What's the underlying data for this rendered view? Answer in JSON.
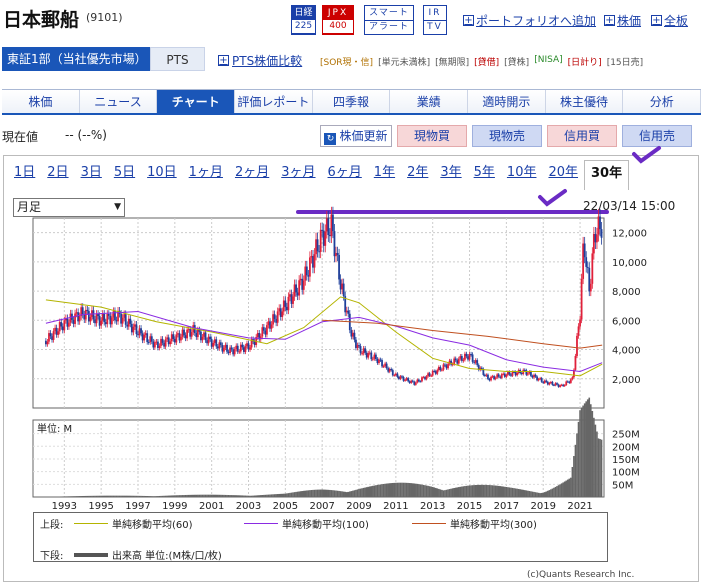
{
  "header": {
    "title": "日本郵船",
    "code": "(9101)",
    "badges": {
      "nikkei": "日経",
      "nikkei_num": "225",
      "jpx": "JPX",
      "jpx_num": "400",
      "smart": "スマート",
      "smart2": "アラート",
      "ir": "IR",
      "tv": "TV"
    },
    "links": {
      "portfolio": "ポートフォリオへ追加",
      "kabuka": "株価",
      "zenban": "全板"
    }
  },
  "market": {
    "primary": "東証1部（当社優先市場）",
    "pts": "PTS",
    "compare": "PTS株価比較",
    "tags": [
      "[SOR現・信]",
      "[単元未満株]",
      "[無期限]",
      "[貸借]",
      "[貸株]",
      "[NISA]",
      "[日計り]",
      "[15日売]"
    ]
  },
  "tabs": [
    "株価",
    "ニュース",
    "チャート",
    "評価レポート",
    "四季報",
    "業績",
    "適時開示",
    "株主優待",
    "分析"
  ],
  "price": {
    "label": "現在値",
    "value": "-- (--%)"
  },
  "buttons": {
    "update": "株価更新",
    "genbutsu_buy": "現物買",
    "genbutsu_sell": "現物売",
    "shinyo_buy": "信用買",
    "shinyo_sell": "信用売"
  },
  "periods": [
    "1日",
    "2日",
    "3日",
    "5日",
    "10日",
    "1ヶ月",
    "2ヶ月",
    "3ヶ月",
    "6ヶ月",
    "1年",
    "2年",
    "3年",
    "5年",
    "10年",
    "20年",
    "30年"
  ],
  "chart": {
    "select": "月足",
    "date": "22/03/14 15:00",
    "vol_unit": "単位: M"
  },
  "legend": {
    "upper": "上段:",
    "lower": "下段:",
    "ma60": "単純移動平均(60)",
    "ma100": "単純移動平均(100)",
    "ma300": "単純移動平均(300)",
    "vol": "出来高 単位:(M株/口/枚)"
  },
  "copyright": "(c)Quants Research Inc.",
  "chart_data": {
    "type": "line",
    "x_ticks": [
      "1993",
      "1995",
      "1997",
      "1999",
      "2001",
      "2003",
      "2005",
      "2007",
      "2009",
      "2011",
      "2013",
      "2015",
      "2017",
      "2019",
      "2021"
    ],
    "y_ticks": [
      "2,000",
      "4,000",
      "6,000",
      "8,000",
      "10,000",
      "12,000"
    ],
    "vol_ticks": [
      "50M",
      "100M",
      "150M",
      "200M",
      "250M"
    ],
    "ylim": [
      0,
      13000
    ],
    "price": [
      [
        1992,
        4600
      ],
      [
        1993,
        5800
      ],
      [
        1994,
        6500
      ],
      [
        1995,
        6000
      ],
      [
        1996,
        6300
      ],
      [
        1997,
        5200
      ],
      [
        1998,
        4300
      ],
      [
        1999,
        4800
      ],
      [
        2000,
        5300
      ],
      [
        2001,
        4500
      ],
      [
        2002,
        3900
      ],
      [
        2003,
        4200
      ],
      [
        2004,
        5500
      ],
      [
        2005,
        7000
      ],
      [
        2006,
        8800
      ],
      [
        2007,
        11800
      ],
      [
        2007.5,
        12500
      ],
      [
        2008,
        8500
      ],
      [
        2008.6,
        5000
      ],
      [
        2009,
        4000
      ],
      [
        2010,
        3300
      ],
      [
        2011,
        2200
      ],
      [
        2012,
        1700
      ],
      [
        2013,
        2400
      ],
      [
        2014,
        3100
      ],
      [
        2015,
        3600
      ],
      [
        2016,
        2000
      ],
      [
        2017,
        2300
      ],
      [
        2018,
        2500
      ],
      [
        2019,
        1800
      ],
      [
        2020,
        1500
      ],
      [
        2020.6,
        2000
      ],
      [
        2021,
        6500
      ],
      [
        2021.2,
        11500
      ],
      [
        2021.5,
        8000
      ],
      [
        2021.8,
        12000
      ],
      [
        2022.2,
        12500
      ]
    ],
    "ma60": [
      [
        1992,
        7400
      ],
      [
        1995,
        6900
      ],
      [
        1998,
        5900
      ],
      [
        2001,
        5200
      ],
      [
        2004,
        4400
      ],
      [
        2006,
        5500
      ],
      [
        2008,
        7600
      ],
      [
        2009,
        7200
      ],
      [
        2011,
        5200
      ],
      [
        2013,
        3400
      ],
      [
        2015,
        2700
      ],
      [
        2017,
        2500
      ],
      [
        2019,
        2500
      ],
      [
        2021,
        2200
      ],
      [
        2022.2,
        3000
      ]
    ],
    "ma100": [
      [
        1992,
        5800
      ],
      [
        1994,
        6400
      ],
      [
        1997,
        6600
      ],
      [
        2000,
        5500
      ],
      [
        2003,
        4800
      ],
      [
        2005,
        4700
      ],
      [
        2007,
        5900
      ],
      [
        2009,
        6200
      ],
      [
        2011,
        5600
      ],
      [
        2013,
        4800
      ],
      [
        2015,
        4300
      ],
      [
        2017,
        3300
      ],
      [
        2019,
        2800
      ],
      [
        2021,
        2500
      ],
      [
        2022.2,
        3100
      ]
    ],
    "ma300": [
      [
        2007,
        6000
      ],
      [
        2010,
        5800
      ],
      [
        2013,
        5300
      ],
      [
        2016,
        4900
      ],
      [
        2019,
        4400
      ],
      [
        2021,
        4100
      ],
      [
        2022.2,
        4300
      ]
    ],
    "volume": [
      [
        1993,
        3
      ],
      [
        1996,
        4
      ],
      [
        1999,
        6
      ],
      [
        2002,
        7
      ],
      [
        2005,
        10
      ],
      [
        2007,
        25
      ],
      [
        2009,
        35
      ],
      [
        2011,
        40
      ],
      [
        2013,
        45
      ],
      [
        2015,
        38
      ],
      [
        2017,
        30
      ],
      [
        2019,
        25
      ],
      [
        2020.5,
        60
      ],
      [
        2021,
        250
      ],
      [
        2021.5,
        280
      ],
      [
        2022,
        170
      ]
    ]
  }
}
